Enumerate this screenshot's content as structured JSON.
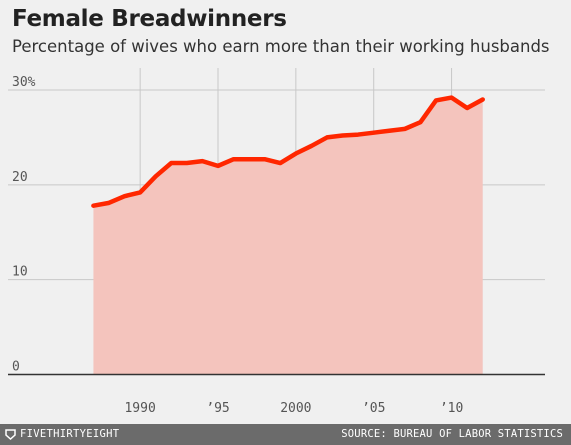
{
  "chart_data": {
    "type": "area",
    "title": "Female Breadwinners",
    "subtitle": "Percentage of wives who earn more than their working husbands",
    "x": [
      1987,
      1988,
      1989,
      1990,
      1991,
      1992,
      1993,
      1994,
      1995,
      1996,
      1997,
      1998,
      1999,
      2000,
      2001,
      2002,
      2003,
      2004,
      2005,
      2006,
      2007,
      2008,
      2009,
      2010,
      2011,
      2012
    ],
    "series": [
      {
        "values": [
          17.8,
          18.1,
          18.8,
          19.2,
          20.9,
          22.3,
          22.3,
          22.5,
          22.0,
          22.7,
          22.7,
          22.7,
          22.3,
          23.3,
          24.1,
          25.0,
          25.2,
          25.3,
          25.5,
          25.7,
          25.9,
          26.6,
          28.9,
          29.2,
          28.1,
          29.0
        ]
      }
    ],
    "xlim": [
      1981,
      2016
    ],
    "ylim": [
      0,
      30
    ],
    "yticks": [
      0,
      10,
      20,
      30
    ],
    "ytick_labels": [
      "0",
      "10",
      "20",
      "30%"
    ],
    "xticks": [
      1990,
      1995,
      2000,
      2005,
      2010
    ],
    "xtick_labels": [
      "1990",
      "’95",
      "2000",
      "’05",
      "’10"
    ],
    "grid": true,
    "colors": {
      "line": "#ff2700",
      "fill": "#f4c4bd",
      "grid": "#c8c8c8",
      "axis": "#333333"
    }
  },
  "footer": {
    "brand": "FIVETHIRTYEIGHT",
    "brand_icon": "fivethirtyeight-logo-icon",
    "source": "SOURCE: BUREAU OF LABOR STATISTICS"
  }
}
